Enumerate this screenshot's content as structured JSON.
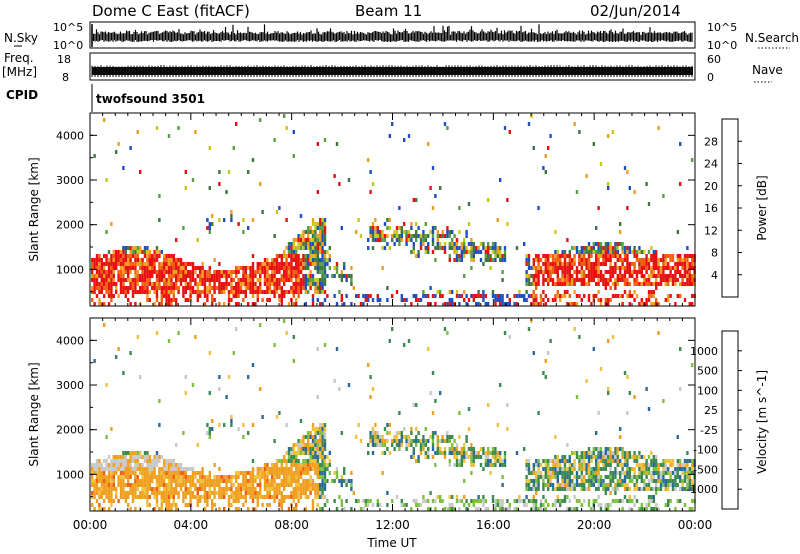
{
  "header": {
    "title": "Dome C East (fitACF)",
    "beam": "Beam 11",
    "date": "02/Jun/2014"
  },
  "panels": {
    "nsky_label": "N.Sky",
    "nsky_tick_hi": "10^5",
    "nsky_tick_lo": "10^0",
    "nsearch_label": "N.Search",
    "nsearch_tick_hi": "10^5",
    "nsearch_tick_lo": "10^0",
    "freq_label": "Freq.",
    "freq_unit": "[MHz]",
    "freq_tick_hi": "18",
    "freq_tick_lo": "8",
    "nave_label": "Nave",
    "nave_tick_hi": "60",
    "nave_tick_lo": "0",
    "cpid_label": "CPID",
    "cpid_value": "twofsound 3501"
  },
  "chart_data": [
    {
      "type": "heatmap",
      "name": "power",
      "xlabel": "Time UT",
      "ylabel": "Slant Range [km]",
      "x_ticks": [
        "00:00",
        "04:00",
        "08:00",
        "12:00",
        "16:00",
        "20:00",
        "00:00"
      ],
      "y_ticks": [
        1000,
        2000,
        3000,
        4000
      ],
      "xlim_hours": [
        0,
        24
      ],
      "ylim_km": [
        180,
        4500
      ],
      "colorbar_label": "Power [dB]",
      "colorbar_ticks": [
        4,
        8,
        12,
        16,
        20,
        24,
        28
      ],
      "colorbar_colors": [
        "#1a1aff",
        "#2050c0",
        "#3c7840",
        "#58a048",
        "#c8c818",
        "#f0a020",
        "#f06010",
        "#e81010"
      ]
    },
    {
      "type": "heatmap",
      "name": "velocity",
      "xlabel": "Time UT",
      "ylabel": "Slant Range [km]",
      "x_ticks": [
        "00:00",
        "04:00",
        "08:00",
        "12:00",
        "16:00",
        "20:00",
        "00:00"
      ],
      "y_ticks": [
        1000,
        2000,
        3000,
        4000
      ],
      "xlim_hours": [
        0,
        24
      ],
      "ylim_km": [
        180,
        4500
      ],
      "colorbar_label": "Velocity [m s^-1]",
      "colorbar_ticks": [
        "1000",
        "500",
        "100",
        "25",
        "-25",
        "-100",
        "-500",
        "-1000"
      ],
      "colorbar_colors": [
        "#1a3cc8",
        "#2a6aa0",
        "#3c8a50",
        "#7cc040",
        "#c8c8c8",
        "#f0c040",
        "#f0a020",
        "#f06010",
        "#e81010"
      ]
    }
  ]
}
